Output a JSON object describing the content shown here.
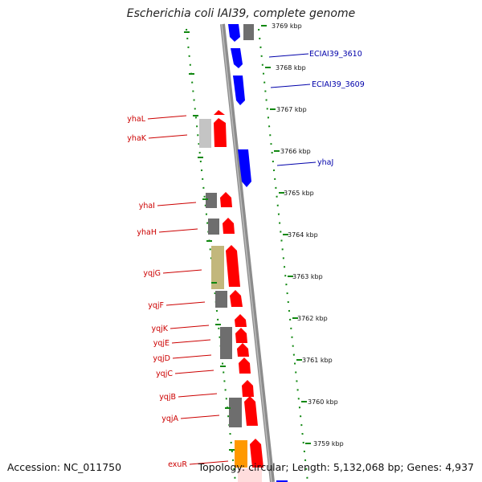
{
  "title": "Escherichia coli IAI39, complete genome",
  "footer": {
    "accession": "Accession: NC_011750",
    "summary": "Topology: circular; Length: 5,132,068 bp; Genes: 4,937"
  },
  "colors": {
    "backbone": "#8c8c8c",
    "forward_gene": "#ff0000",
    "reverse_gene": "#0000ff",
    "pseudo_gray": "#6e6e6e",
    "light_gray": "#c4c4c4",
    "olive": "#c2b77c",
    "orange": "#ff9900",
    "label_red": "#cc0000",
    "label_blue": "#0000aa",
    "dotted_track": "#118811"
  },
  "ticks": [
    "3769 kbp",
    "3768 kbp",
    "3767 kbp",
    "3766 kbp",
    "3765 kbp",
    "3764 kbp",
    "3763 kbp",
    "3762 kbp",
    "3761 kbp",
    "3760 kbp",
    "3759 kbp"
  ],
  "genes_right": [
    {
      "name": "ECIAI39_3610"
    },
    {
      "name": "ECIAI39_3609"
    },
    {
      "name": "yhaJ"
    }
  ],
  "genes_left": [
    {
      "name": "yhaL"
    },
    {
      "name": "yhaK"
    },
    {
      "name": "yhaI"
    },
    {
      "name": "yhaH"
    },
    {
      "name": "yqjG"
    },
    {
      "name": "yqjF"
    },
    {
      "name": "yqjK"
    },
    {
      "name": "yqjE"
    },
    {
      "name": "yqjD"
    },
    {
      "name": "yqjC"
    },
    {
      "name": "yqjB"
    },
    {
      "name": "yqjA"
    },
    {
      "name": "exuR"
    }
  ]
}
